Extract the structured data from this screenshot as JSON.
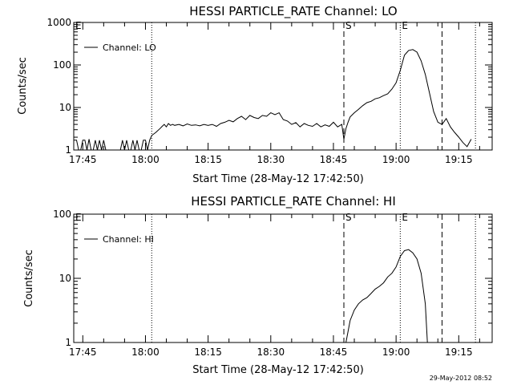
{
  "chart_data": [
    {
      "type": "line",
      "title": "HESSI PARTICLE_RATE Channel: LO",
      "ylabel": "Counts/sec",
      "xlabel": "Start Time (28-May-12 17:42:50)",
      "yscale": "log",
      "ylim": [
        1,
        1000
      ],
      "xlim": [
        "17:42:50",
        "19:23:00"
      ],
      "ytick_labels": [
        "1",
        "10",
        "100",
        "1000"
      ],
      "ytick_values": [
        1,
        10,
        100,
        1000
      ],
      "xtick_labels": [
        "17:45",
        "18:00",
        "18:15",
        "18:30",
        "18:45",
        "19:00",
        "19:15"
      ],
      "xtick_values": [
        "17:45",
        "18:00",
        "18:15",
        "18:30",
        "18:45",
        "19:00",
        "19:15"
      ],
      "legend": {
        "placement": "top-left",
        "entries": [
          "Channel: LO"
        ]
      },
      "markers": [
        {
          "label": "E",
          "time": "17:42:50",
          "style": "dotted"
        },
        {
          "label": "",
          "time": "18:01:30",
          "style": "dotted"
        },
        {
          "label": "S",
          "time": "18:47:30",
          "style": "dashed"
        },
        {
          "label": "E",
          "time": "19:01:00",
          "style": "dotted"
        },
        {
          "label": "",
          "time": "19:11:00",
          "style": "dashed"
        },
        {
          "label": "",
          "time": "19:19:00",
          "style": "dotted"
        }
      ],
      "series": [
        {
          "name": "Channel: LO",
          "x": [
            "17:42:50",
            "17:43:30",
            "17:44:00",
            "17:44:30",
            "17:45:00",
            "17:45:30",
            "17:46:00",
            "17:46:30",
            "17:47:00",
            "17:47:30",
            "17:48:00",
            "17:48:30",
            "17:49:00",
            "17:49:30",
            "17:50:00",
            "17:50:30",
            "17:51:00",
            "17:51:30",
            "17:52:00",
            "17:52:30",
            "17:53:00",
            "17:53:30",
            "17:54:00",
            "17:54:30",
            "17:55:00",
            "17:55:30",
            "17:56:00",
            "17:56:30",
            "17:57:00",
            "17:57:30",
            "17:58:00",
            "17:58:30",
            "17:59:00",
            "17:59:30",
            "18:00:00",
            "18:00:30",
            "18:01:00",
            "18:01:30",
            "18:02:30",
            "18:03:30",
            "18:04:00",
            "18:04:30",
            "18:05:00",
            "18:05:30",
            "18:06:00",
            "18:06:30",
            "18:07:00",
            "18:08:00",
            "18:09:00",
            "18:10:00",
            "18:11:00",
            "18:12:00",
            "18:13:00",
            "18:14:00",
            "18:15:00",
            "18:16:00",
            "18:17:00",
            "18:18:00",
            "18:19:00",
            "18:20:00",
            "18:21:00",
            "18:22:00",
            "18:23:00",
            "18:24:00",
            "18:25:00",
            "18:26:00",
            "18:27:00",
            "18:28:00",
            "18:29:00",
            "18:30:00",
            "18:31:00",
            "18:32:00",
            "18:33:00",
            "18:34:00",
            "18:35:00",
            "18:36:00",
            "18:37:00",
            "18:38:00",
            "18:39:00",
            "18:40:00",
            "18:41:00",
            "18:42:00",
            "18:43:00",
            "18:44:00",
            "18:45:00",
            "18:46:00",
            "18:47:00",
            "18:47:30",
            "18:48:00",
            "18:48:30",
            "18:49:00",
            "18:50:00",
            "18:51:00",
            "18:52:00",
            "18:53:00",
            "18:54:00",
            "18:55:00",
            "18:56:00",
            "18:57:00",
            "18:58:00",
            "18:59:00",
            "19:00:00",
            "19:01:00",
            "19:02:00",
            "19:03:00",
            "19:04:00",
            "19:05:00",
            "19:06:00",
            "19:07:00",
            "19:08:00",
            "19:09:00",
            "19:10:00",
            "19:11:00",
            "19:12:00",
            "19:13:00",
            "19:14:00",
            "19:15:00",
            "19:16:00",
            "19:17:00",
            "19:18:00"
          ],
          "y": [
            1.7,
            1.7,
            1,
            1,
            1.7,
            1.7,
            1,
            1.8,
            1,
            1,
            1.7,
            1,
            1.7,
            1,
            1.7,
            1,
            1,
            1,
            1,
            1,
            1,
            1,
            1,
            1.7,
            1,
            1.7,
            1,
            1,
            1.7,
            1,
            1.7,
            1,
            1,
            1.7,
            1.7,
            1,
            1.7,
            2.2,
            2.6,
            3.2,
            3.6,
            4.0,
            3.5,
            4.2,
            3.8,
            4.0,
            3.8,
            4.0,
            3.7,
            4.1,
            3.8,
            3.9,
            3.7,
            4.0,
            3.8,
            4.0,
            3.6,
            4.2,
            4.5,
            5.0,
            4.6,
            5.5,
            6.2,
            5.2,
            6.5,
            5.8,
            5.5,
            6.5,
            6.2,
            7.5,
            6.8,
            7.5,
            5.2,
            4.8,
            4.0,
            4.4,
            3.5,
            4.2,
            3.8,
            3.6,
            4.2,
            3.5,
            3.9,
            3.6,
            4.5,
            3.5,
            4.0,
            1.8,
            3.2,
            4.5,
            6.0,
            7.5,
            9.0,
            11,
            13,
            14,
            16,
            17,
            19,
            21,
            27,
            38,
            75,
            170,
            220,
            230,
            200,
            125,
            60,
            22,
            8,
            4.5,
            4.0,
            5.5,
            3.5,
            2.6,
            2.0,
            1.5,
            1.2,
            1.8
          ]
        }
      ]
    },
    {
      "type": "line",
      "title": "HESSI PARTICLE_RATE Channel: HI",
      "ylabel": "Counts/sec",
      "xlabel": "Start Time (28-May-12 17:42:50)",
      "yscale": "log",
      "ylim": [
        1,
        100
      ],
      "xlim": [
        "17:42:50",
        "19:23:00"
      ],
      "ytick_labels": [
        "1",
        "10",
        "100"
      ],
      "ytick_values": [
        1,
        10,
        100
      ],
      "xtick_labels": [
        "17:45",
        "18:00",
        "18:15",
        "18:30",
        "18:45",
        "19:00",
        "19:15"
      ],
      "xtick_values": [
        "17:45",
        "18:00",
        "18:15",
        "18:30",
        "18:45",
        "19:00",
        "19:15"
      ],
      "legend": {
        "placement": "top-left",
        "entries": [
          "Channel: HI"
        ]
      },
      "markers": [
        {
          "label": "E",
          "time": "17:42:50",
          "style": "dotted"
        },
        {
          "label": "",
          "time": "18:01:30",
          "style": "dotted"
        },
        {
          "label": "S",
          "time": "18:47:30",
          "style": "dashed"
        },
        {
          "label": "E",
          "time": "19:01:00",
          "style": "dotted"
        },
        {
          "label": "",
          "time": "19:11:00",
          "style": "dashed"
        },
        {
          "label": "",
          "time": "19:19:00",
          "style": "dotted"
        }
      ],
      "series": [
        {
          "name": "Channel: HI",
          "x": [
            "18:48:00",
            "18:49:00",
            "18:50:00",
            "18:51:00",
            "18:52:00",
            "18:53:00",
            "18:54:00",
            "18:55:00",
            "18:56:00",
            "18:57:00",
            "18:58:00",
            "18:59:00",
            "19:00:00",
            "19:01:00",
            "19:02:00",
            "19:03:00",
            "19:04:00",
            "19:05:00",
            "19:06:00",
            "19:07:00",
            "19:07:30"
          ],
          "y": [
            1,
            2.2,
            3.2,
            4.0,
            4.6,
            5.0,
            5.8,
            6.8,
            7.5,
            8.5,
            10.5,
            12,
            15,
            22,
            27,
            28,
            25,
            20,
            12,
            4,
            1
          ]
        }
      ]
    }
  ],
  "footer": {
    "timestamp": "29-May-2012 08:52"
  }
}
